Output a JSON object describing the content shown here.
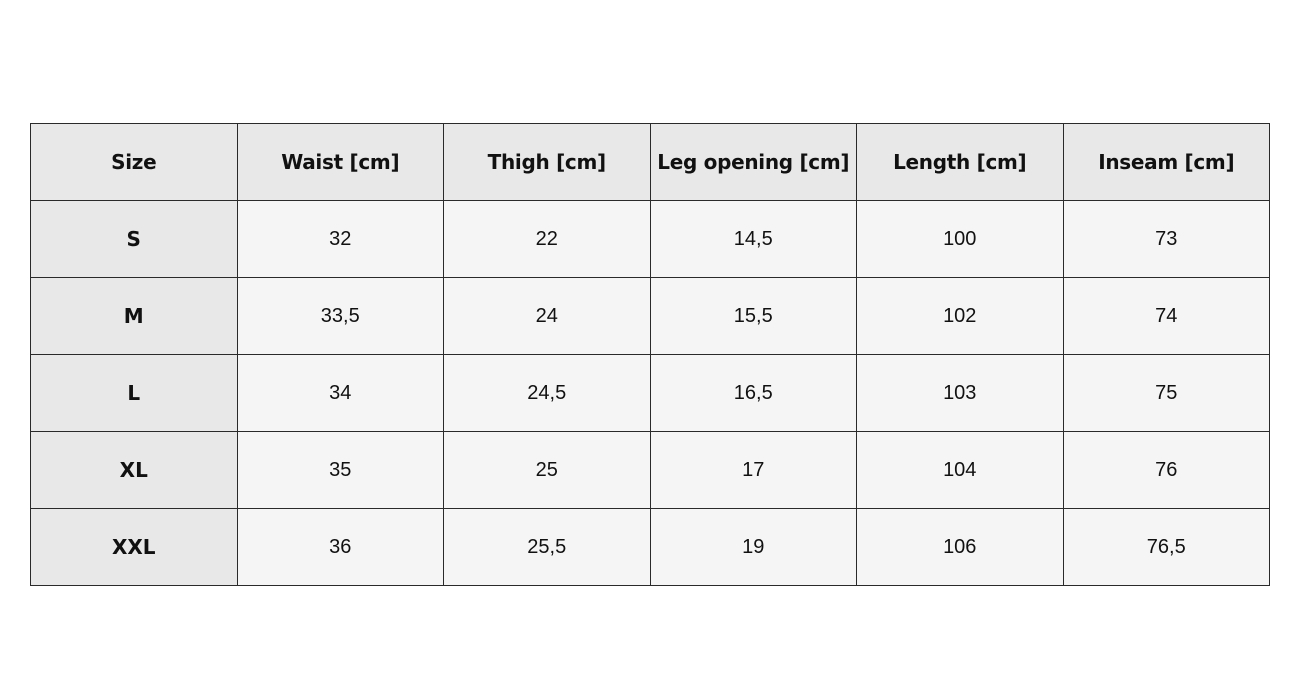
{
  "table": {
    "headers": [
      "Size",
      "Waist [cm]",
      "Thigh [cm]",
      "Leg opening [cm]",
      "Length [cm]",
      "Inseam [cm]"
    ],
    "rows": [
      [
        "S",
        "32",
        "22",
        "14,5",
        "100",
        "73"
      ],
      [
        "M",
        "33,5",
        "24",
        "15,5",
        "102",
        "74"
      ],
      [
        "L",
        "34",
        "24,5",
        "16,5",
        "103",
        "75"
      ],
      [
        "XL",
        "35",
        "25",
        "17",
        "104",
        "76"
      ],
      [
        "XXL",
        "36",
        "25,5",
        "19",
        "106",
        "76,5"
      ]
    ]
  },
  "colors": {
    "header_bg": "#e8e8e8",
    "cell_bg": "#f5f5f5",
    "border": "#2a2a2a"
  }
}
